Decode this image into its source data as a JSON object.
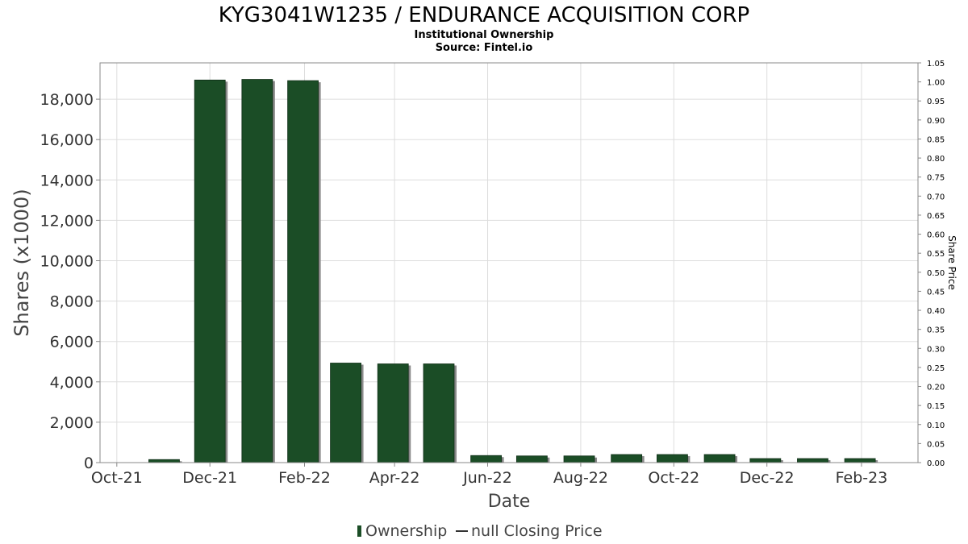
{
  "header": {
    "title": "KYG3041W1235 / ENDURANCE ACQUISITION CORP",
    "subtitle": "Institutional Ownership",
    "source": "Source: Fintel.io"
  },
  "legend": {
    "ownership_label": "Ownership",
    "price_label": "null Closing Price"
  },
  "colors": {
    "bar": "#1b4d26",
    "bar_shadow": "#8a8a8a",
    "grid": "#dddddd",
    "plot_border": "#888888"
  },
  "chart_data": {
    "type": "bar",
    "xlabel": "Date",
    "ylabel": "Shares (x1000)",
    "y2label": "Share Price",
    "ylim": [
      0,
      19800
    ],
    "y2lim": [
      0,
      1.05
    ],
    "x_domain": [
      "2021-09-20",
      "2023-03-10"
    ],
    "grid": true,
    "legend_position": "bottom",
    "x_ticks": [
      {
        "date": "2021-10-01",
        "label": "Oct-21"
      },
      {
        "date": "2021-12-01",
        "label": "Dec-21"
      },
      {
        "date": "2022-02-01",
        "label": "Feb-22"
      },
      {
        "date": "2022-04-01",
        "label": "Apr-22"
      },
      {
        "date": "2022-06-01",
        "label": "Jun-22"
      },
      {
        "date": "2022-08-01",
        "label": "Aug-22"
      },
      {
        "date": "2022-10-01",
        "label": "Oct-22"
      },
      {
        "date": "2022-12-01",
        "label": "Dec-22"
      },
      {
        "date": "2023-02-01",
        "label": "Feb-23"
      }
    ],
    "y_ticks": [
      {
        "value": 0,
        "label": "0"
      },
      {
        "value": 2000,
        "label": "2,000"
      },
      {
        "value": 4000,
        "label": "4,000"
      },
      {
        "value": 6000,
        "label": "6,000"
      },
      {
        "value": 8000,
        "label": "8,000"
      },
      {
        "value": 10000,
        "label": "10,000"
      },
      {
        "value": 12000,
        "label": "12,000"
      },
      {
        "value": 14000,
        "label": "14,000"
      },
      {
        "value": 16000,
        "label": "16,000"
      },
      {
        "value": 18000,
        "label": "18,000"
      }
    ],
    "y2_ticks": [
      "0.00",
      "0.05",
      "0.10",
      "0.15",
      "0.20",
      "0.25",
      "0.30",
      "0.35",
      "0.40",
      "0.45",
      "0.50",
      "0.55",
      "0.60",
      "0.65",
      "0.70",
      "0.75",
      "0.80",
      "0.85",
      "0.90",
      "0.95",
      "1.00",
      "1.05"
    ],
    "series": [
      {
        "name": "Ownership",
        "points": [
          {
            "date": "2021-11-01",
            "value": 150
          },
          {
            "date": "2021-12-01",
            "value": 18950
          },
          {
            "date": "2022-01-01",
            "value": 18980
          },
          {
            "date": "2022-01-31",
            "value": 18920
          },
          {
            "date": "2022-02-28",
            "value": 4930
          },
          {
            "date": "2022-03-31",
            "value": 4890
          },
          {
            "date": "2022-04-30",
            "value": 4890
          },
          {
            "date": "2022-05-31",
            "value": 350
          },
          {
            "date": "2022-06-30",
            "value": 330
          },
          {
            "date": "2022-07-31",
            "value": 330
          },
          {
            "date": "2022-08-31",
            "value": 400
          },
          {
            "date": "2022-09-30",
            "value": 400
          },
          {
            "date": "2022-10-31",
            "value": 400
          },
          {
            "date": "2022-11-30",
            "value": 200
          },
          {
            "date": "2022-12-31",
            "value": 200
          },
          {
            "date": "2023-01-31",
            "value": 200
          }
        ]
      }
    ]
  }
}
